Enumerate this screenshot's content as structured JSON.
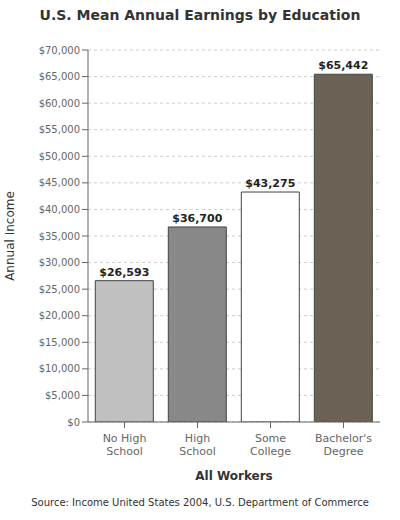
{
  "chart_data": {
    "type": "bar",
    "title": "U.S. Mean Annual Earnings by Education",
    "categories": [
      "No High\nSchool",
      "High\nSchool",
      "Some\nCollege",
      "Bachelor's\nDegree"
    ],
    "values": [
      26593,
      36700,
      43275,
      65442
    ],
    "value_labels": [
      "$26,593",
      "$36,700",
      "$43,275",
      "$65,442"
    ],
    "data_labels": true,
    "colors": [
      "#c0c0c0",
      "#888888",
      "#ffffff",
      "#6b6155"
    ],
    "xlabel": "All Workers",
    "ylabel": "Annual Income",
    "ylim": [
      0,
      70000
    ],
    "yticks": [
      {
        "value": 0,
        "label": "$0"
      },
      {
        "value": 5000,
        "label": "$5,000"
      },
      {
        "value": 10000,
        "label": "$10,000"
      },
      {
        "value": 15000,
        "label": "$15,000"
      },
      {
        "value": 20000,
        "label": "$20,000"
      },
      {
        "value": 25000,
        "label": "$25,000"
      },
      {
        "value": 30000,
        "label": "$30,000"
      },
      {
        "value": 35000,
        "label": "$35,000"
      },
      {
        "value": 40000,
        "label": "$40,000"
      },
      {
        "value": 45000,
        "label": "$45,000"
      },
      {
        "value": 50000,
        "label": "$50,000"
      },
      {
        "value": 55000,
        "label": "$55,000"
      },
      {
        "value": 60000,
        "label": "$60,000"
      },
      {
        "value": 65000,
        "label": "$65,000"
      },
      {
        "value": 70000,
        "label": "$70,000"
      }
    ],
    "grid": true,
    "annotations": [
      "Source: Income United States 2004, U.S. Department of Commerce"
    ]
  }
}
